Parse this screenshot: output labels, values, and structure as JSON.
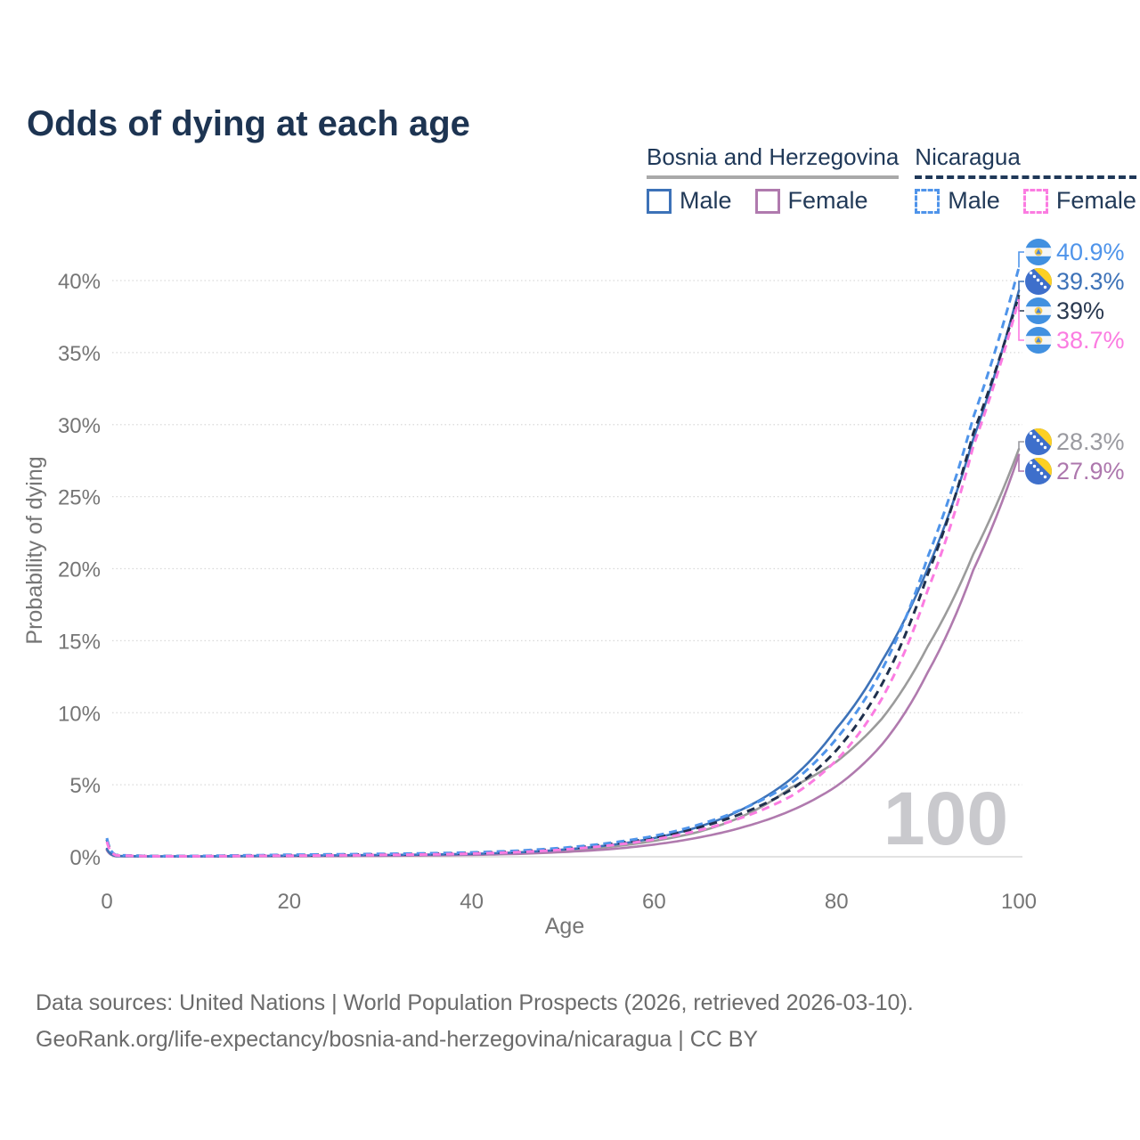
{
  "title": "Odds of dying at each age",
  "legend": {
    "groups": [
      {
        "title": "Bosnia and Herzegovina",
        "line_style": "solid",
        "underline_color": "#a9a9a9",
        "entries": [
          {
            "label": "Male",
            "color": "#3d72b8",
            "dash": false
          },
          {
            "label": "Female",
            "color": "#b07aae",
            "dash": false
          }
        ]
      },
      {
        "title": "Nicaragua",
        "line_style": "dashed",
        "underline_color": "#1f3858",
        "entries": [
          {
            "label": "Male",
            "color": "#4f94ea",
            "dash": true
          },
          {
            "label": "Female",
            "color": "#fb7ce1",
            "dash": true
          }
        ]
      }
    ]
  },
  "footer": {
    "line1": "Data sources: United Nations | World Population Prospects (2026, retrieved 2026-03-10).",
    "line2": "GeoRank.org/life-expectancy/bosnia-and-herzegovina/nicaragua | CC BY"
  },
  "chart_data": {
    "type": "line",
    "title": "Odds of dying at each age",
    "xlabel": "Age",
    "ylabel": "Probability of dying",
    "x_ticks": [
      0,
      20,
      40,
      60,
      80,
      100
    ],
    "y_ticks_pct": [
      0,
      5,
      10,
      15,
      20,
      25,
      30,
      35,
      40
    ],
    "xlim": [
      0,
      100
    ],
    "ylim_pct": [
      0,
      43
    ],
    "grid": "horizontal-dotted",
    "legend_position": "top-right",
    "watermark": "100",
    "ages": [
      0,
      1,
      5,
      10,
      15,
      20,
      25,
      30,
      35,
      40,
      45,
      50,
      55,
      60,
      65,
      70,
      75,
      80,
      85,
      90,
      95,
      100
    ],
    "series": [
      {
        "id": "bosnia-overall",
        "country": "Bosnia and Herzegovina",
        "sex": "Overall",
        "color": "#9b9b9b",
        "dash": false,
        "flag": "bosnia",
        "end_label": "28.3%",
        "label_color": "#9a9aa0",
        "label_slot": 4,
        "values_pct": [
          0.5,
          0.05,
          0.03,
          0.03,
          0.04,
          0.06,
          0.08,
          0.1,
          0.12,
          0.17,
          0.26,
          0.42,
          0.68,
          1.1,
          1.75,
          2.9,
          4.8,
          6.6,
          9.6,
          14.6,
          21.0,
          28.3
        ]
      },
      {
        "id": "bosnia-female",
        "country": "Bosnia and Herzegovina",
        "sex": "Female",
        "color": "#b07aae",
        "dash": false,
        "flag": "bosnia",
        "end_label": "27.9%",
        "label_color": "#ad77ad",
        "label_slot": 5,
        "values_pct": [
          0.45,
          0.04,
          0.02,
          0.02,
          0.03,
          0.04,
          0.05,
          0.07,
          0.09,
          0.13,
          0.2,
          0.33,
          0.52,
          0.85,
          1.35,
          2.1,
          3.2,
          4.9,
          7.8,
          12.8,
          19.9,
          27.9
        ]
      },
      {
        "id": "bosnia-male",
        "country": "Bosnia and Herzegovina",
        "sex": "Male",
        "color": "#3d72b8",
        "dash": false,
        "flag": "bosnia",
        "end_label": "39.3%",
        "label_color": "#3d72b8",
        "label_slot": 1,
        "values_pct": [
          0.55,
          0.05,
          0.03,
          0.03,
          0.05,
          0.08,
          0.1,
          0.12,
          0.15,
          0.2,
          0.3,
          0.5,
          0.8,
          1.3,
          2.1,
          3.4,
          5.4,
          8.9,
          13.6,
          20.0,
          29.0,
          39.3
        ]
      },
      {
        "id": "nicaragua-overall",
        "country": "Nicaragua",
        "sex": "Overall",
        "color": "#20304d",
        "dash": true,
        "flag": "nicaragua",
        "end_label": "39%",
        "label_color": "#2a3950",
        "label_slot": 2,
        "values_pct": [
          1.2,
          0.11,
          0.05,
          0.05,
          0.08,
          0.11,
          0.14,
          0.17,
          0.2,
          0.26,
          0.37,
          0.56,
          0.87,
          1.33,
          2.05,
          3.1,
          4.65,
          7.4,
          12.0,
          19.6,
          29.4,
          39.0
        ]
      },
      {
        "id": "nicaragua-male",
        "country": "Nicaragua",
        "sex": "Male",
        "color": "#4f94ea",
        "dash": true,
        "flag": "nicaragua",
        "end_label": "40.9%",
        "label_color": "#4f94ea",
        "label_slot": 0,
        "values_pct": [
          1.3,
          0.12,
          0.05,
          0.06,
          0.1,
          0.14,
          0.17,
          0.2,
          0.24,
          0.3,
          0.42,
          0.62,
          0.95,
          1.45,
          2.25,
          3.4,
          5.1,
          8.2,
          13.0,
          20.8,
          30.5,
          40.9
        ]
      },
      {
        "id": "nicaragua-female",
        "country": "Nicaragua",
        "sex": "Female",
        "color": "#fb7ce1",
        "dash": true,
        "flag": "nicaragua",
        "end_label": "38.7%",
        "label_color": "#fb7ce1",
        "label_slot": 3,
        "values_pct": [
          1.05,
          0.1,
          0.04,
          0.04,
          0.06,
          0.08,
          0.1,
          0.13,
          0.16,
          0.22,
          0.32,
          0.5,
          0.78,
          1.2,
          1.85,
          2.8,
          4.2,
          6.7,
          11.0,
          18.5,
          28.5,
          38.7
        ]
      }
    ]
  }
}
